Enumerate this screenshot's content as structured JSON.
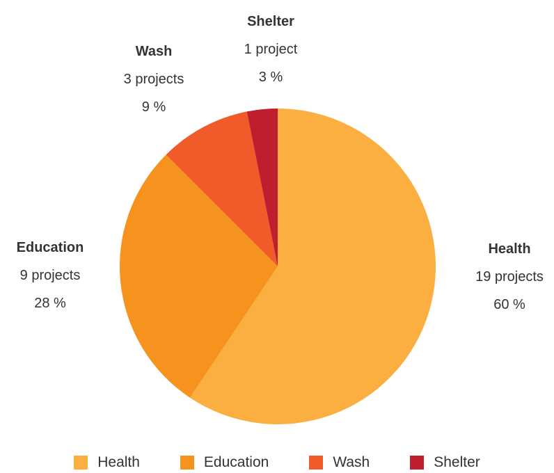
{
  "chart_data": {
    "type": "pie",
    "title": "",
    "slices": [
      {
        "name": "Health",
        "projects": 19,
        "projects_label": "19 projects",
        "percent": 60,
        "percent_label": "60 %",
        "color": "#FAAF40"
      },
      {
        "name": "Education",
        "projects": 9,
        "projects_label": "9 projects",
        "percent": 28,
        "percent_label": "28 %",
        "color": "#F6921E"
      },
      {
        "name": "Wash",
        "projects": 3,
        "projects_label": "3 projects",
        "percent": 9,
        "percent_label": "9 %",
        "color": "#F15A29"
      },
      {
        "name": "Shelter",
        "projects": 1,
        "projects_label": "1 project",
        "percent": 3,
        "percent_label": "3 %",
        "color": "#BE1E2D"
      }
    ],
    "legend": {
      "placement": "bottom"
    }
  }
}
